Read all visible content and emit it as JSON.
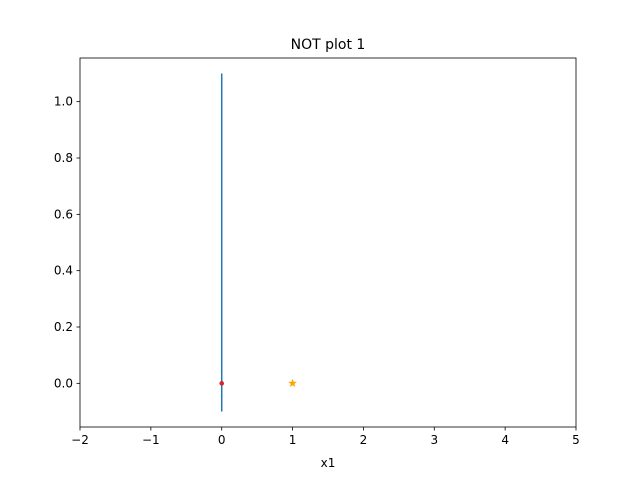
{
  "chart_data": {
    "type": "scatter",
    "title": "NOT plot 1",
    "xlabel": "x1",
    "ylabel": "",
    "xlim": [
      -2,
      5
    ],
    "ylim": [
      -0.155,
      1.155
    ],
    "xticks": [
      -2,
      -1,
      0,
      1,
      2,
      3,
      4,
      5
    ],
    "xtick_labels": [
      "−2",
      "−1",
      "0",
      "1",
      "2",
      "3",
      "4",
      "5"
    ],
    "yticks": [
      0.0,
      0.2,
      0.4,
      0.6,
      0.8,
      1.0
    ],
    "ytick_labels": [
      "0.0",
      "0.2",
      "0.4",
      "0.6",
      "0.8",
      "1.0"
    ],
    "grid": false,
    "legend": "none",
    "series": [
      {
        "kind": "line",
        "color": "#1f77b4",
        "points": [
          [
            0,
            -0.1
          ],
          [
            0,
            1.1
          ]
        ]
      },
      {
        "kind": "marker",
        "marker": "dot",
        "color": "#d62728",
        "points": [
          [
            0,
            0
          ]
        ]
      },
      {
        "kind": "marker",
        "marker": "star",
        "color": "#ffa500",
        "points": [
          [
            1,
            0
          ]
        ]
      }
    ]
  }
}
